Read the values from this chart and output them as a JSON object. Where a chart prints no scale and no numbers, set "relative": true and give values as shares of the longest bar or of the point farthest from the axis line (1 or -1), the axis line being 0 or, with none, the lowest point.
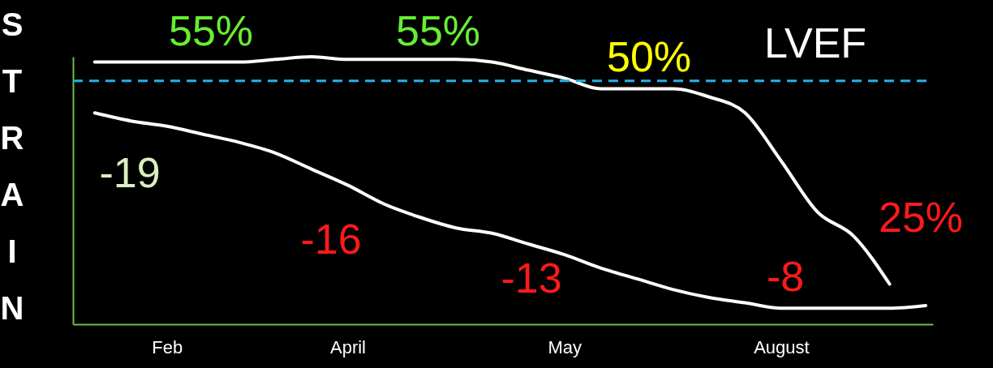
{
  "chart_data": {
    "type": "line",
    "relative": true,
    "ylabel": "STRAIN",
    "categories": [
      null,
      null,
      "Feb",
      null,
      null,
      null,
      null,
      "April",
      null,
      null,
      null,
      null,
      null,
      "May",
      null,
      null,
      null,
      null,
      null,
      "August",
      null,
      null,
      null,
      null
    ],
    "series": [
      {
        "name": "LVEF",
        "color": "#ffffff",
        "values": [
          0.98,
          0.98,
          0.98,
          0.98,
          0.98,
          0.99,
          1,
          0.99,
          0.99,
          0.99,
          0.99,
          0.98,
          0.95,
          0.92,
          0.88,
          0.88,
          0.88,
          0.85,
          0.79,
          0.61,
          0.42,
          0.33,
          0.15,
          null
        ]
      },
      {
        "color": "#ffffff",
        "values": [
          0.79,
          0.76,
          0.74,
          0.71,
          0.68,
          0.64,
          0.58,
          0.52,
          0.45,
          0.4,
          0.36,
          0.34,
          0.3,
          0.26,
          0.21,
          0.17,
          0.13,
          0.1,
          0.08,
          0.06,
          0.06,
          0.06,
          0.06,
          0.07
        ]
      }
    ],
    "ref_lines": [
      {
        "axis": "y",
        "value": 0.91,
        "color": "#1fb4e8",
        "line_style": "dashed"
      }
    ],
    "annotations": [
      "55%",
      "55%",
      "50%",
      "25%",
      "-19",
      "-16",
      "-13",
      "-8"
    ],
    "marker": "none",
    "line_style": "solid",
    "grid": false
  }
}
